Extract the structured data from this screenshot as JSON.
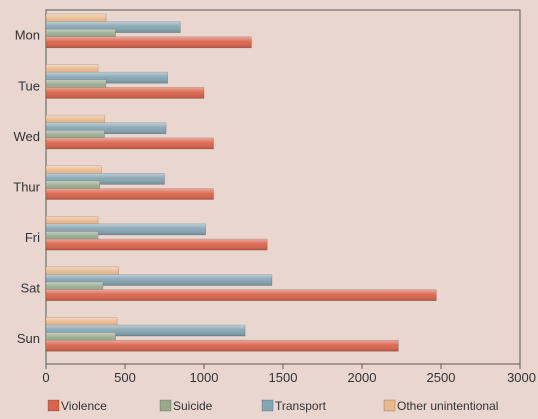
{
  "chart_data": {
    "type": "bar",
    "orientation": "horizontal",
    "categories": [
      "Mon",
      "Tue",
      "Wed",
      "Thur",
      "Fri",
      "Sat",
      "Sun"
    ],
    "series": [
      {
        "name": "Violence",
        "color": "#d9644c",
        "values": [
          1300,
          1000,
          1060,
          1060,
          1400,
          2470,
          2230
        ]
      },
      {
        "name": "Suicide",
        "color": "#97a88d",
        "values": [
          440,
          380,
          370,
          340,
          330,
          360,
          440
        ]
      },
      {
        "name": "Transport",
        "color": "#86a5b2",
        "values": [
          850,
          770,
          760,
          750,
          1010,
          1430,
          1260
        ]
      },
      {
        "name": "Other unintentional",
        "color": "#e8b78c",
        "values": [
          380,
          330,
          370,
          350,
          330,
          460,
          450
        ]
      }
    ],
    "xticks": [
      "0",
      "500",
      "1000",
      "1500",
      "2000",
      "2500",
      "3000"
    ],
    "xlim": [
      0,
      3000
    ],
    "xlabel": "",
    "ylabel": "",
    "title": "",
    "grid": false,
    "legend_position": "bottom"
  }
}
